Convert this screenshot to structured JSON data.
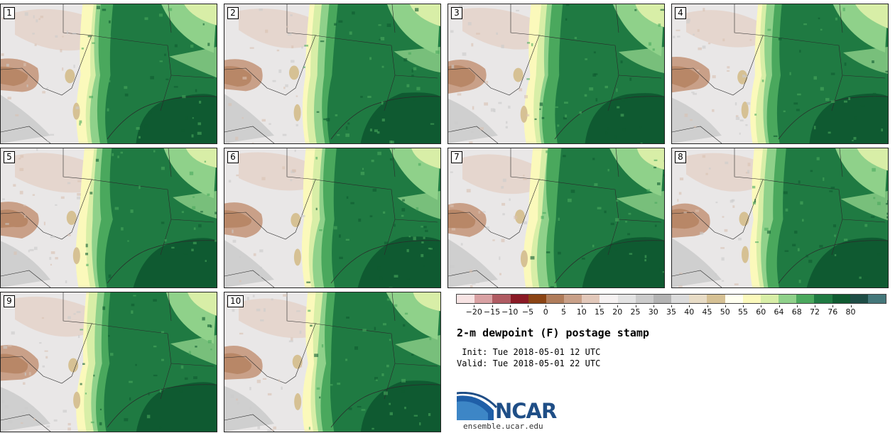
{
  "panels": [
    {
      "label": "1"
    },
    {
      "label": "2"
    },
    {
      "label": "3"
    },
    {
      "label": "4"
    },
    {
      "label": "5"
    },
    {
      "label": "6"
    },
    {
      "label": "7"
    },
    {
      "label": "8"
    },
    {
      "label": "9"
    },
    {
      "label": "10"
    }
  ],
  "colorbar": {
    "colors": [
      "#f7e3e3",
      "#d9a1a3",
      "#b05b62",
      "#8a1a25",
      "#8b4414",
      "#b07c5a",
      "#c9a088",
      "#e2c8ba",
      "#f6f2f2",
      "#e3e3e3",
      "#cbcbcb",
      "#b3b3b3",
      "#dbdbdb",
      "#e8dcc6",
      "#d6c194",
      "#fffff0",
      "#fbf9bb",
      "#d8eea7",
      "#8fd18a",
      "#4aa85d",
      "#1f7a42",
      "#0f5a31",
      "#1e4d46",
      "#44777a"
    ],
    "tick_labels": [
      "-20",
      "-15",
      "-10",
      "-5",
      "0",
      "5",
      "10",
      "15",
      "20",
      "25",
      "30",
      "35",
      "40",
      "45",
      "50",
      "55",
      "60",
      "64",
      "68",
      "72",
      "76",
      "80"
    ]
  },
  "text": {
    "title": "2-m dewpoint (F) postage stamp",
    "init": " Init: Tue 2018-05-01 12 UTC",
    "valid": "Valid: Tue 2018-05-01 22 UTC",
    "logo": "NCAR",
    "site": "ensemble.ucar.edu"
  }
}
